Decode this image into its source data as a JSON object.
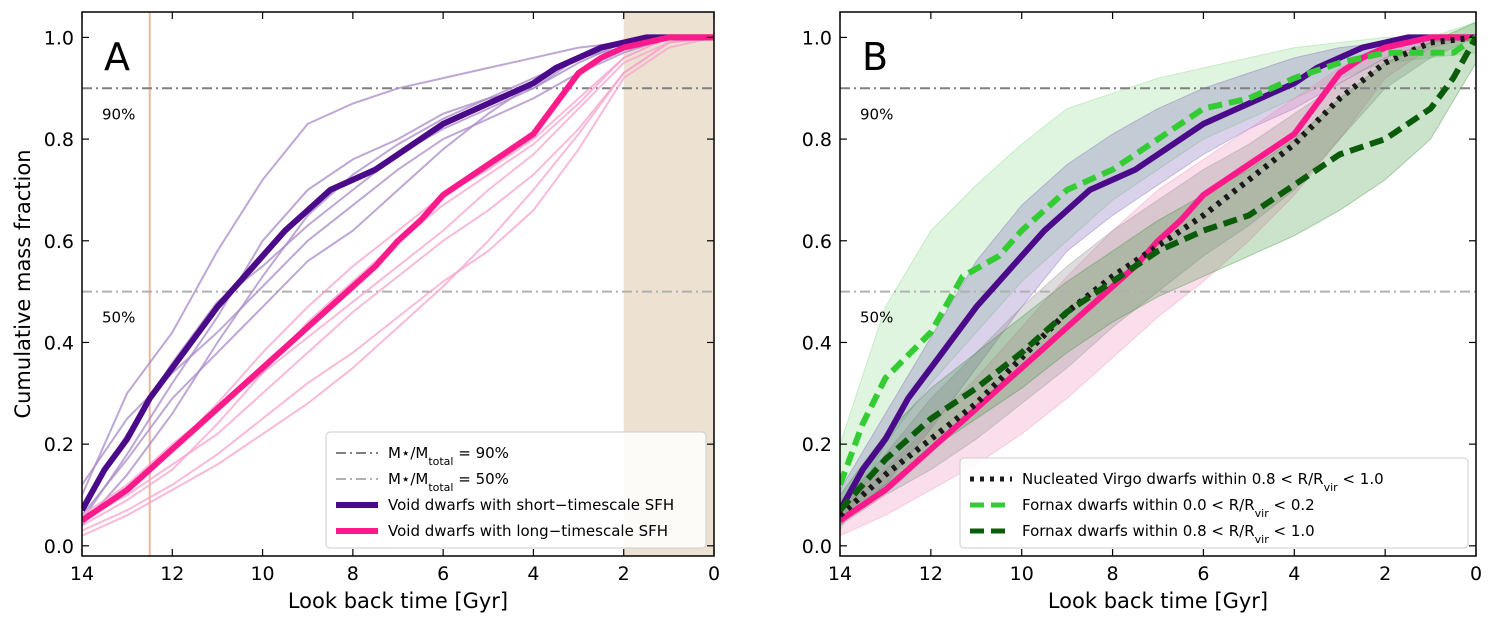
{
  "chart_data": [
    {
      "type": "line",
      "panel": "A",
      "xlabel": "Look back time [Gyr]",
      "ylabel": "Cumulative mass fraction",
      "xlim": [
        14,
        0
      ],
      "ylim": [
        -0.02,
        1.05
      ],
      "xticks": [
        "14",
        "12",
        "10",
        "8",
        "6",
        "4",
        "2",
        "0"
      ],
      "yticks": [
        "0.0",
        "0.2",
        "0.4",
        "0.6",
        "0.8",
        "1.0"
      ],
      "hlines": [
        {
          "name": "90",
          "y": 0.9,
          "color": "#808080",
          "label": "90%"
        },
        {
          "name": "50",
          "y": 0.5,
          "color": "#b0b0b0",
          "label": "50%"
        }
      ],
      "vline": {
        "x": 12.5,
        "color": "#e8b8a0"
      },
      "shaded_region": {
        "x": [
          2,
          0
        ],
        "color": "#ede2d2"
      },
      "series": [
        {
          "name": "Void dwarfs with short-timescale SFH",
          "color": "#4b0a8a",
          "x": [
            14,
            13.5,
            13,
            12.5,
            12,
            11.5,
            11,
            10.5,
            10,
            9.5,
            9,
            8.5,
            8,
            7.5,
            7,
            6.5,
            6,
            5.5,
            5,
            4.5,
            4,
            3.5,
            3,
            2.5,
            2,
            1.5,
            1,
            0.5,
            0
          ],
          "y": [
            0.07,
            0.15,
            0.21,
            0.29,
            0.35,
            0.41,
            0.47,
            0.52,
            0.57,
            0.62,
            0.66,
            0.7,
            0.72,
            0.74,
            0.77,
            0.8,
            0.83,
            0.85,
            0.87,
            0.89,
            0.91,
            0.94,
            0.96,
            0.98,
            0.99,
            1.0,
            1.0,
            1.0,
            1.0
          ]
        },
        {
          "name": "Void dwarfs with long-timescale SFH",
          "color": "#ff1a8c",
          "x": [
            14,
            13.5,
            13,
            12.5,
            12,
            11.5,
            11,
            10.5,
            10,
            9.5,
            9,
            8.5,
            8,
            7.5,
            7,
            6.5,
            6,
            5.5,
            5,
            4.5,
            4,
            3.5,
            3,
            2.5,
            2,
            1.5,
            1,
            0.5,
            0
          ],
          "y": [
            0.05,
            0.08,
            0.11,
            0.15,
            0.19,
            0.23,
            0.27,
            0.31,
            0.35,
            0.39,
            0.43,
            0.47,
            0.51,
            0.55,
            0.6,
            0.64,
            0.69,
            0.72,
            0.75,
            0.78,
            0.81,
            0.87,
            0.93,
            0.96,
            0.98,
            0.99,
            1.0,
            1.0,
            1.0
          ]
        }
      ],
      "individual_tracks": {
        "x": [
          14,
          13,
          12,
          11,
          10,
          9,
          8,
          7,
          6,
          5,
          4,
          3,
          2,
          1,
          0
        ],
        "short": {
          "color": "#a88ac6",
          "tracks": [
            [
              0.1,
              0.3,
              0.42,
              0.58,
              0.72,
              0.83,
              0.87,
              0.9,
              0.92,
              0.94,
              0.96,
              0.98,
              0.99,
              1.0,
              1.0
            ],
            [
              0.05,
              0.18,
              0.32,
              0.45,
              0.6,
              0.7,
              0.76,
              0.8,
              0.85,
              0.88,
              0.9,
              0.95,
              0.99,
              1.0,
              1.0
            ],
            [
              0.08,
              0.22,
              0.36,
              0.48,
              0.55,
              0.63,
              0.7,
              0.77,
              0.82,
              0.86,
              0.9,
              0.96,
              0.99,
              1.0,
              1.0
            ],
            [
              0.12,
              0.25,
              0.34,
              0.42,
              0.51,
              0.6,
              0.67,
              0.74,
              0.8,
              0.84,
              0.88,
              0.93,
              0.97,
              1.0,
              1.0
            ],
            [
              0.04,
              0.14,
              0.26,
              0.4,
              0.53,
              0.65,
              0.73,
              0.79,
              0.84,
              0.88,
              0.92,
              0.96,
              0.98,
              1.0,
              1.0
            ],
            [
              0.06,
              0.17,
              0.29,
              0.38,
              0.47,
              0.56,
              0.62,
              0.7,
              0.78,
              0.85,
              0.91,
              0.96,
              0.99,
              1.0,
              1.0
            ]
          ]
        },
        "long": {
          "color": "#f7a3cc",
          "tracks": [
            [
              0.03,
              0.07,
              0.12,
              0.18,
              0.25,
              0.32,
              0.38,
              0.45,
              0.52,
              0.58,
              0.66,
              0.78,
              0.92,
              0.98,
              1.0
            ],
            [
              0.05,
              0.1,
              0.16,
              0.22,
              0.3,
              0.38,
              0.46,
              0.53,
              0.6,
              0.66,
              0.73,
              0.82,
              0.93,
              0.99,
              1.0
            ],
            [
              0.04,
              0.09,
              0.15,
              0.24,
              0.34,
              0.44,
              0.52,
              0.6,
              0.67,
              0.73,
              0.79,
              0.87,
              0.96,
              1.0,
              1.0
            ],
            [
              0.06,
              0.12,
              0.2,
              0.27,
              0.34,
              0.41,
              0.48,
              0.55,
              0.62,
              0.7,
              0.77,
              0.86,
              0.95,
              0.99,
              1.0
            ],
            [
              0.02,
              0.06,
              0.11,
              0.16,
              0.22,
              0.28,
              0.35,
              0.43,
              0.51,
              0.6,
              0.7,
              0.81,
              0.93,
              0.99,
              1.0
            ],
            [
              0.05,
              0.11,
              0.19,
              0.28,
              0.38,
              0.47,
              0.55,
              0.62,
              0.69,
              0.74,
              0.8,
              0.88,
              0.96,
              1.0,
              1.0
            ]
          ]
        }
      },
      "legend": {
        "placement": "lower-right",
        "entries": [
          {
            "label": "M⋆/Mtotal = 90%",
            "main": "M⋆/M",
            "sub": "total",
            "rest": " = 90%",
            "color": "#808080",
            "style": "dashdot"
          },
          {
            "label": "M⋆/Mtotal = 50%",
            "main": "M⋆/M",
            "sub": "total",
            "rest": " = 50%",
            "color": "#b0b0b0",
            "style": "dashdot"
          },
          {
            "label": "Void dwarfs with short−timescale SFH",
            "color": "#4b0a8a",
            "style": "solid"
          },
          {
            "label": "Void dwarfs with long−timescale SFH",
            "color": "#ff1a8c",
            "style": "solid"
          }
        ]
      }
    },
    {
      "type": "line",
      "panel": "B",
      "xlabel": "Look back time [Gyr]",
      "ylabel": "",
      "xlim": [
        14,
        0
      ],
      "ylim": [
        -0.02,
        1.05
      ],
      "xticks": [
        "14",
        "12",
        "10",
        "8",
        "6",
        "4",
        "2",
        "0"
      ],
      "yticks": [
        "0.0",
        "0.2",
        "0.4",
        "0.6",
        "0.8",
        "1.0"
      ],
      "hlines": [
        {
          "name": "90",
          "y": 0.9,
          "color": "#808080",
          "label": "90%"
        },
        {
          "name": "50",
          "y": 0.5,
          "color": "#b0b0b0",
          "label": "50%"
        }
      ],
      "bands": [
        {
          "name": "green-light",
          "color": "#7fd87f",
          "opacity": 0.25,
          "x": [
            14,
            13,
            12,
            11,
            10,
            9,
            8,
            7,
            6,
            5,
            4,
            3,
            2,
            1,
            0
          ],
          "lower": [
            0.03,
            0.2,
            0.32,
            0.42,
            0.52,
            0.6,
            0.68,
            0.74,
            0.8,
            0.84,
            0.88,
            0.92,
            0.95,
            0.96,
            0.97
          ],
          "upper": [
            0.2,
            0.47,
            0.62,
            0.71,
            0.79,
            0.86,
            0.89,
            0.92,
            0.94,
            0.96,
            0.98,
            0.99,
            1.0,
            1.0,
            1.03
          ]
        },
        {
          "name": "purple",
          "color": "#7b5cb8",
          "opacity": 0.28,
          "x": [
            14,
            13,
            12,
            11,
            10,
            9,
            8,
            7,
            6,
            5,
            4,
            3,
            2,
            1,
            0
          ],
          "lower": [
            0.04,
            0.12,
            0.23,
            0.35,
            0.47,
            0.58,
            0.65,
            0.71,
            0.77,
            0.82,
            0.86,
            0.91,
            0.96,
            0.99,
            1.0
          ],
          "upper": [
            0.11,
            0.26,
            0.41,
            0.56,
            0.67,
            0.75,
            0.81,
            0.86,
            0.9,
            0.93,
            0.96,
            0.98,
            0.99,
            1.0,
            1.0
          ]
        },
        {
          "name": "pink",
          "color": "#f08ab8",
          "opacity": 0.28,
          "x": [
            14,
            13,
            12,
            11,
            10,
            9,
            8,
            7,
            6,
            5,
            4,
            3,
            2,
            1,
            0
          ],
          "lower": [
            0.02,
            0.06,
            0.11,
            0.16,
            0.22,
            0.29,
            0.37,
            0.45,
            0.52,
            0.6,
            0.69,
            0.8,
            0.92,
            0.98,
            1.0
          ],
          "upper": [
            0.09,
            0.15,
            0.24,
            0.33,
            0.43,
            0.53,
            0.62,
            0.7,
            0.76,
            0.82,
            0.88,
            0.94,
            0.98,
            1.0,
            1.0
          ]
        },
        {
          "name": "gray",
          "color": "#909090",
          "opacity": 0.3,
          "x": [
            14,
            13,
            12,
            11,
            10,
            9,
            8,
            7,
            6,
            5,
            4,
            3,
            2,
            1,
            0
          ],
          "lower": [
            0.04,
            0.1,
            0.15,
            0.21,
            0.28,
            0.35,
            0.43,
            0.5,
            0.57,
            0.63,
            0.7,
            0.8,
            0.9,
            0.96,
            1.0
          ],
          "upper": [
            0.08,
            0.18,
            0.29,
            0.38,
            0.47,
            0.55,
            0.62,
            0.68,
            0.74,
            0.79,
            0.85,
            0.91,
            0.96,
            0.99,
            1.0
          ]
        },
        {
          "name": "dark-green",
          "color": "#2e8b2e",
          "opacity": 0.25,
          "x": [
            14,
            13,
            12,
            11,
            10,
            9,
            8,
            7,
            6,
            5,
            4,
            3,
            2,
            1,
            0
          ],
          "lower": [
            0.05,
            0.12,
            0.19,
            0.25,
            0.31,
            0.38,
            0.44,
            0.49,
            0.53,
            0.57,
            0.61,
            0.66,
            0.72,
            0.8,
            0.95
          ],
          "upper": [
            0.1,
            0.22,
            0.31,
            0.38,
            0.45,
            0.52,
            0.58,
            0.64,
            0.69,
            0.74,
            0.8,
            0.88,
            0.95,
            0.99,
            1.03
          ]
        }
      ],
      "series": [
        {
          "name": "Void dwarfs with short-timescale SFH",
          "color": "#4b0a8a",
          "style": "solid",
          "x": [
            14,
            13.5,
            13,
            12.5,
            12,
            11.5,
            11,
            10.5,
            10,
            9.5,
            9,
            8.5,
            8,
            7.5,
            7,
            6.5,
            6,
            5.5,
            5,
            4.5,
            4,
            3.5,
            3,
            2.5,
            2,
            1.5,
            1,
            0.5,
            0
          ],
          "y": [
            0.07,
            0.15,
            0.21,
            0.29,
            0.35,
            0.41,
            0.47,
            0.52,
            0.57,
            0.62,
            0.66,
            0.7,
            0.72,
            0.74,
            0.77,
            0.8,
            0.83,
            0.85,
            0.87,
            0.89,
            0.91,
            0.94,
            0.96,
            0.98,
            0.99,
            1.0,
            1.0,
            1.0,
            1.0
          ]
        },
        {
          "name": "Void dwarfs with long-timescale SFH",
          "color": "#ff1a8c",
          "style": "solid",
          "x": [
            14,
            13.5,
            13,
            12.5,
            12,
            11.5,
            11,
            10.5,
            10,
            9.5,
            9,
            8.5,
            8,
            7.5,
            7,
            6.5,
            6,
            5.5,
            5,
            4.5,
            4,
            3.5,
            3,
            2.5,
            2,
            1.5,
            1,
            0.5,
            0
          ],
          "y": [
            0.05,
            0.08,
            0.11,
            0.15,
            0.19,
            0.23,
            0.27,
            0.31,
            0.35,
            0.39,
            0.43,
            0.47,
            0.51,
            0.55,
            0.6,
            0.64,
            0.69,
            0.72,
            0.75,
            0.78,
            0.81,
            0.87,
            0.93,
            0.96,
            0.98,
            0.99,
            1.0,
            1.0,
            1.0
          ]
        },
        {
          "name": "Nucleated Virgo dwarfs within 0.8 < R/Rvir < 1.0",
          "color": "#1a1a1a",
          "style": "dotted",
          "x": [
            14,
            13,
            12,
            11,
            10,
            9,
            8,
            7,
            6,
            5,
            4,
            3,
            2,
            1,
            0
          ],
          "y": [
            0.06,
            0.14,
            0.21,
            0.28,
            0.37,
            0.46,
            0.53,
            0.59,
            0.65,
            0.72,
            0.79,
            0.88,
            0.95,
            0.99,
            1.0
          ]
        },
        {
          "name": "Fornax dwarfs within 0.0 < R/Rvir < 0.2",
          "color": "#33cc33",
          "style": "dashed",
          "x": [
            14,
            13.5,
            13,
            12,
            11.3,
            10.5,
            10,
            9.5,
            9,
            8,
            7,
            6,
            5,
            4,
            3,
            2,
            1,
            0.5,
            0
          ],
          "y": [
            0.12,
            0.24,
            0.33,
            0.42,
            0.53,
            0.57,
            0.62,
            0.66,
            0.7,
            0.74,
            0.8,
            0.86,
            0.88,
            0.92,
            0.95,
            0.97,
            0.97,
            0.97,
            1.0
          ]
        },
        {
          "name": "Fornax dwarfs within 0.8 < R/Rvir < 1.0",
          "color": "#0a5c0a",
          "style": "dashed",
          "x": [
            14,
            13,
            12,
            11,
            10,
            9,
            8,
            7,
            6,
            5,
            4,
            3,
            2,
            1,
            0.5,
            0
          ],
          "y": [
            0.07,
            0.17,
            0.25,
            0.31,
            0.38,
            0.46,
            0.52,
            0.58,
            0.62,
            0.65,
            0.71,
            0.77,
            0.8,
            0.86,
            0.92,
            1.0
          ]
        }
      ],
      "legend": {
        "placement": "lower-right",
        "entries": [
          {
            "label": "Nucleated Virgo dwarfs within 0.8 < R/Rvir < 1.0",
            "main": "Nucleated Virgo dwarfs within 0.8 < R/R",
            "sub": "vir",
            "rest": " < 1.0",
            "color": "#1a1a1a",
            "style": "dotted"
          },
          {
            "label": "Fornax dwarfs within 0.0 < R/Rvir < 0.2",
            "main": "Fornax dwarfs within 0.0 < R/R",
            "sub": "vir",
            "rest": " < 0.2",
            "color": "#33cc33",
            "style": "dashed"
          },
          {
            "label": "Fornax dwarfs within 0.8 < R/Rvir < 1.0",
            "main": "Fornax dwarfs within 0.8 < R/R",
            "sub": "vir",
            "rest": " < 1.0",
            "color": "#0a5c0a",
            "style": "dashed"
          }
        ]
      }
    }
  ]
}
